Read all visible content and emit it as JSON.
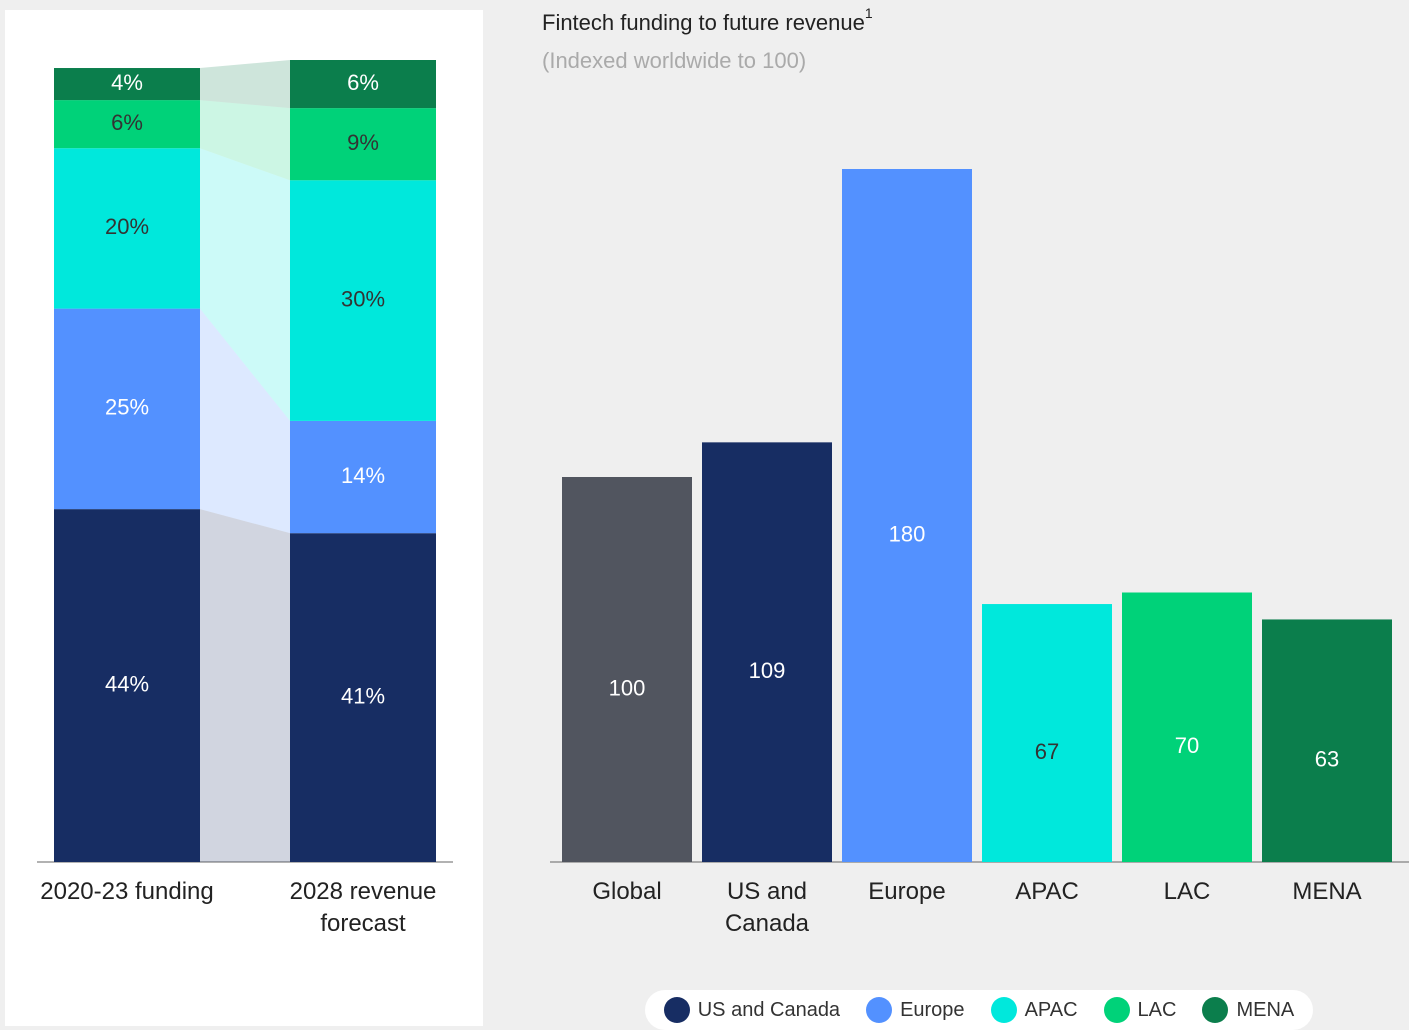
{
  "chart_data": [
    {
      "type": "stacked_bar",
      "categories": [
        "2020-23 funding",
        "2028 revenue forecast"
      ],
      "ylim": [
        0,
        100
      ],
      "series": [
        {
          "name": "US and Canada",
          "color": "#172d63",
          "values": [
            44,
            41
          ],
          "value_labels": [
            "44%",
            "41%"
          ]
        },
        {
          "name": "Europe",
          "color": "#5391ff",
          "values": [
            25,
            14
          ],
          "value_labels": [
            "25%",
            "14%"
          ]
        },
        {
          "name": "APAC",
          "color": "#00e8dc",
          "values": [
            20,
            30
          ],
          "value_labels": [
            "20%",
            "30%"
          ]
        },
        {
          "name": "LAC",
          "color": "#00d279",
          "values": [
            6,
            9
          ],
          "value_labels": [
            "6%",
            "9%"
          ]
        },
        {
          "name": "MENA",
          "color": "#0b7e4c",
          "values": [
            4,
            6
          ],
          "value_labels": [
            "4%",
            "6%"
          ]
        }
      ]
    },
    {
      "type": "bar",
      "title": "Fintech funding to future revenue",
      "title_note": "1",
      "subtitle": "(Indexed worldwide to 100)",
      "categories": [
        "Global",
        "US and Canada",
        "Europe",
        "APAC",
        "LAC",
        "MENA"
      ],
      "values": [
        100,
        109,
        180,
        67,
        70,
        63
      ],
      "colors": [
        "#51555f",
        "#172d63",
        "#5391ff",
        "#00e8dc",
        "#00d279",
        "#0b7e4c"
      ]
    }
  ]
}
